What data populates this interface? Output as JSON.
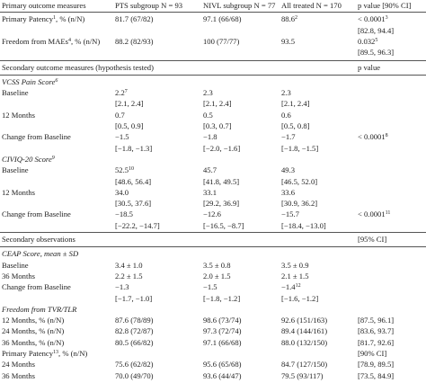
{
  "table": {
    "header": [
      "Primary outcome measures",
      "PTS subgroup N = 93",
      "NIVL subgroup N = 77",
      "All treated N = 170",
      "p value [90% CI]"
    ],
    "primary_rows": [
      {
        "label": {
          "t": "Primary Patency",
          "sup": "1",
          "after": ", % (n/N)"
        },
        "cells": [
          {
            "t": "81.7 (67/82)"
          },
          {
            "t": "97.1 (66/68)"
          },
          {
            "t": "88.6",
            "sup": "2"
          },
          {
            "t": "< 0.0001",
            "sup": "3",
            "ci": "[82.8, 94.4]"
          }
        ]
      },
      {
        "label": {
          "t": "Freedom from MAEs",
          "sup": "4",
          "after": ", % (n/N)"
        },
        "cells": [
          {
            "t": "88.2 (82/93)"
          },
          {
            "t": "100 (77/77)"
          },
          {
            "t": "93.5"
          },
          {
            "t": "0.032",
            "sup": "5",
            "ci": "[89.5, 96.3]"
          }
        ]
      }
    ],
    "sections": [
      {
        "title": "Secondary outcome measures (hypothesis tested)",
        "right": "p value",
        "groups": [
          {
            "title": {
              "t": "VCSS Pain Score",
              "sup": "6"
            },
            "rows": [
              {
                "label": "Baseline",
                "cells": [
                  {
                    "t": "2.2",
                    "sup": "7",
                    "ci": "[2.1, 2.4]"
                  },
                  {
                    "t": "2.3",
                    "ci": "[2.1, 2.4]"
                  },
                  {
                    "t": "2.3",
                    "ci": "[2.1, 2.4]"
                  },
                  null
                ]
              },
              {
                "label": "12 Months",
                "cells": [
                  {
                    "t": "0.7",
                    "ci": "[0.5, 0.9]"
                  },
                  {
                    "t": "0.5",
                    "ci": "[0.3, 0.7]"
                  },
                  {
                    "t": "0.6",
                    "ci": "[0.5, 0.8]"
                  },
                  null
                ]
              },
              {
                "label": "Change from Baseline",
                "cells": [
                  {
                    "t": "−1.5",
                    "ci": "[−1.8, −1.3]"
                  },
                  {
                    "t": "−1.8",
                    "ci": "[−2.0, −1.6]"
                  },
                  {
                    "t": "−1.7",
                    "ci": "[−1.8, −1.5]"
                  },
                  {
                    "t": "< 0.0001",
                    "sup": "8"
                  }
                ]
              }
            ]
          },
          {
            "title": {
              "t": "CIVIQ-20 Score",
              "sup": "9"
            },
            "rows": [
              {
                "label": "Baseline",
                "cells": [
                  {
                    "t": "52.5",
                    "sup": "10",
                    "ci": "[48.6, 56.4]"
                  },
                  {
                    "t": "45.7",
                    "ci": "[41.8, 49.5]"
                  },
                  {
                    "t": "49.3",
                    "ci": "[46.5, 52.0]"
                  },
                  null
                ]
              },
              {
                "label": "12 Months",
                "cells": [
                  {
                    "t": "34.0",
                    "ci": "[30.5, 37.6]"
                  },
                  {
                    "t": "33.1",
                    "ci": "[29.2, 36.9]"
                  },
                  {
                    "t": "33.6",
                    "ci": "[30.9, 36.2]"
                  },
                  null
                ]
              },
              {
                "label": "Change from Baseline",
                "cells": [
                  {
                    "t": "−18.5",
                    "ci": "[−22.2, −14.7]"
                  },
                  {
                    "t": "−12.6",
                    "ci": "[−16.5, −8.7]"
                  },
                  {
                    "t": "−15.7",
                    "ci": "[−18.4, −13.0]"
                  },
                  {
                    "t": "< 0.0001",
                    "sup": "11"
                  }
                ]
              }
            ]
          }
        ]
      },
      {
        "title": "Secondary observations",
        "right": "[95% CI]",
        "groups": [
          {
            "title": {
              "t": "CEAP Score, mean ± SD"
            },
            "rows": [
              {
                "label": "Baseline",
                "cells": [
                  {
                    "t": "3.4 ± 1.0"
                  },
                  {
                    "t": "3.5 ± 0.8"
                  },
                  {
                    "t": "3.5 ± 0.9"
                  },
                  null
                ]
              },
              {
                "label": "36 Months",
                "cells": [
                  {
                    "t": "2.2 ± 1.5"
                  },
                  {
                    "t": "2.0 ± 1.5"
                  },
                  {
                    "t": "2.1 ± 1.5"
                  },
                  null
                ]
              },
              {
                "label": "Change from Baseline",
                "cells": [
                  {
                    "t": "−1.3",
                    "ci": "[−1.7, −1.0]"
                  },
                  {
                    "t": "−1.5",
                    "ci": "[−1.8, −1.2]"
                  },
                  {
                    "t": "−1.4",
                    "sup": "12",
                    "ci": "[−1.6, −1.2]"
                  },
                  null
                ]
              }
            ]
          },
          {
            "title": {
              "t": "Freedom from TVR/TLR"
            },
            "rows": [
              {
                "label": "12 Months, % (n/N)",
                "cells": [
                  {
                    "t": "87.6 (78/89)"
                  },
                  {
                    "t": "98.6 (73/74)"
                  },
                  {
                    "t": "92.6 (151/163)"
                  },
                  {
                    "t": "[87.5, 96.1]"
                  }
                ]
              },
              {
                "label": "24 Months, % (n/N)",
                "cells": [
                  {
                    "t": "82.8 (72/87)"
                  },
                  {
                    "t": "97.3 (72/74)"
                  },
                  {
                    "t": "89.4 (144/161)"
                  },
                  {
                    "t": "[83.6, 93.7]"
                  }
                ]
              },
              {
                "label": "36 Months, % (n/N)",
                "cells": [
                  {
                    "t": "80.5 (66/82)"
                  },
                  {
                    "t": "97.1 (66/68)"
                  },
                  {
                    "t": "88.0 (132/150)"
                  },
                  {
                    "t": "[81.7, 92.6]"
                  }
                ]
              }
            ]
          },
          {
            "title": {
              "t": "Primary Patency",
              "sup": "13",
              "after": ", % (n/N)"
            },
            "right": "[90% CI]",
            "rows": [
              {
                "label": "24 Months",
                "cells": [
                  {
                    "t": "75.6 (62/82)"
                  },
                  {
                    "t": "95.6 (65/68)"
                  },
                  {
                    "t": "84.7 (127/150)"
                  },
                  {
                    "t": "[78.9, 89.5]"
                  }
                ]
              },
              {
                "label": "36 Months",
                "cells": [
                  {
                    "t": "70.0 (49/70)"
                  },
                  {
                    "t": "93.6 (44/47)"
                  },
                  {
                    "t": "79.5 (93/117)"
                  },
                  {
                    "t": "[73.5, 84.9]"
                  }
                ]
              }
            ]
          }
        ]
      }
    ]
  }
}
